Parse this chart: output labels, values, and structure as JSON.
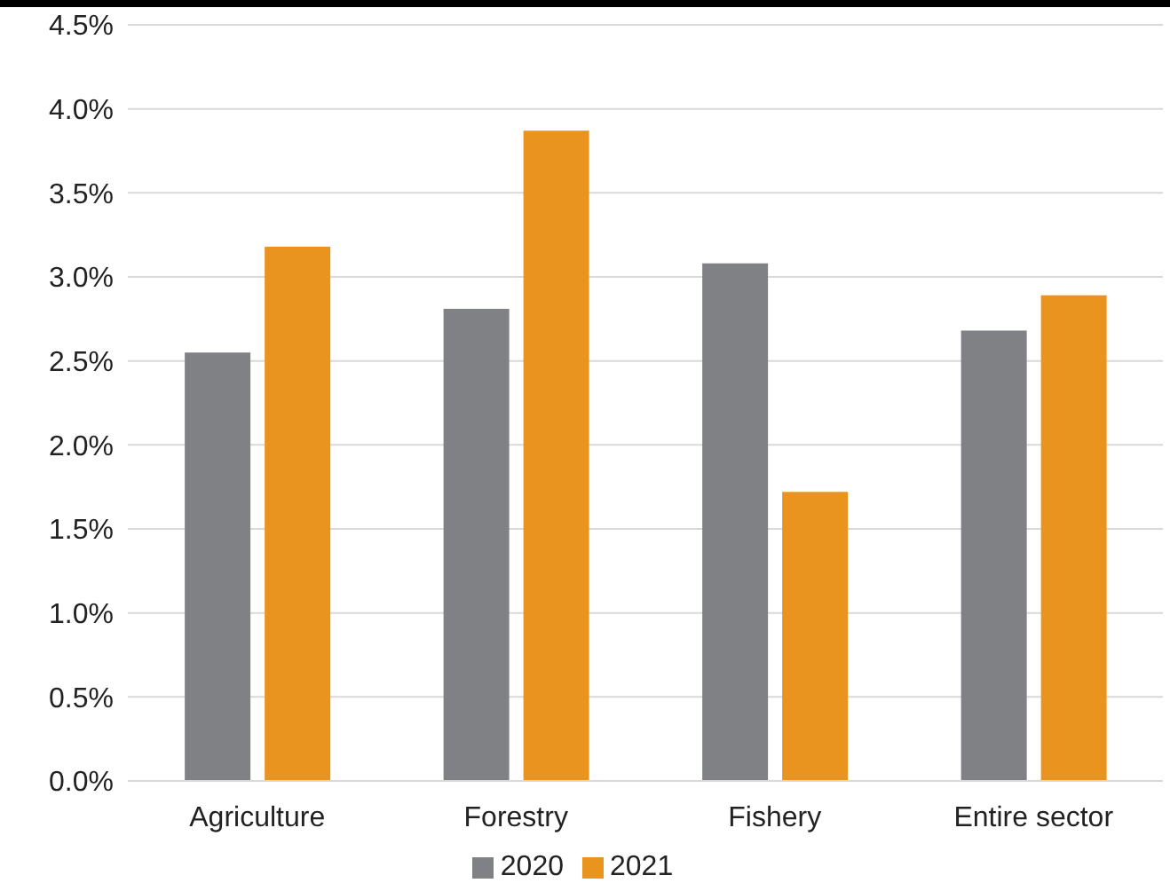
{
  "chart_data": {
    "type": "bar",
    "categories": [
      "Agriculture",
      "Forestry",
      "Fishery",
      "Entire sector"
    ],
    "series": [
      {
        "name": "2020",
        "color": "#808184",
        "values": [
          2.55,
          2.81,
          3.08,
          2.68
        ]
      },
      {
        "name": "2021",
        "color": "#ea9420",
        "values": [
          3.18,
          3.87,
          1.72,
          2.89
        ]
      }
    ],
    "ylim": [
      0,
      4.5
    ],
    "yticks": [
      {
        "value": 0,
        "label": "0.0%"
      },
      {
        "value": 0.5,
        "label": "0.5%"
      },
      {
        "value": 1,
        "label": "1.0%"
      },
      {
        "value": 1.5,
        "label": "1.5%"
      },
      {
        "value": 2,
        "label": "2.0%"
      },
      {
        "value": 2.5,
        "label": "2.5%"
      },
      {
        "value": 3,
        "label": "3.0%"
      },
      {
        "value": 3.5,
        "label": "3.5%"
      },
      {
        "value": 4,
        "label": "4.0%"
      },
      {
        "value": 4.5,
        "label": "4.5%"
      }
    ],
    "grid": "y",
    "legend": "bottom"
  }
}
